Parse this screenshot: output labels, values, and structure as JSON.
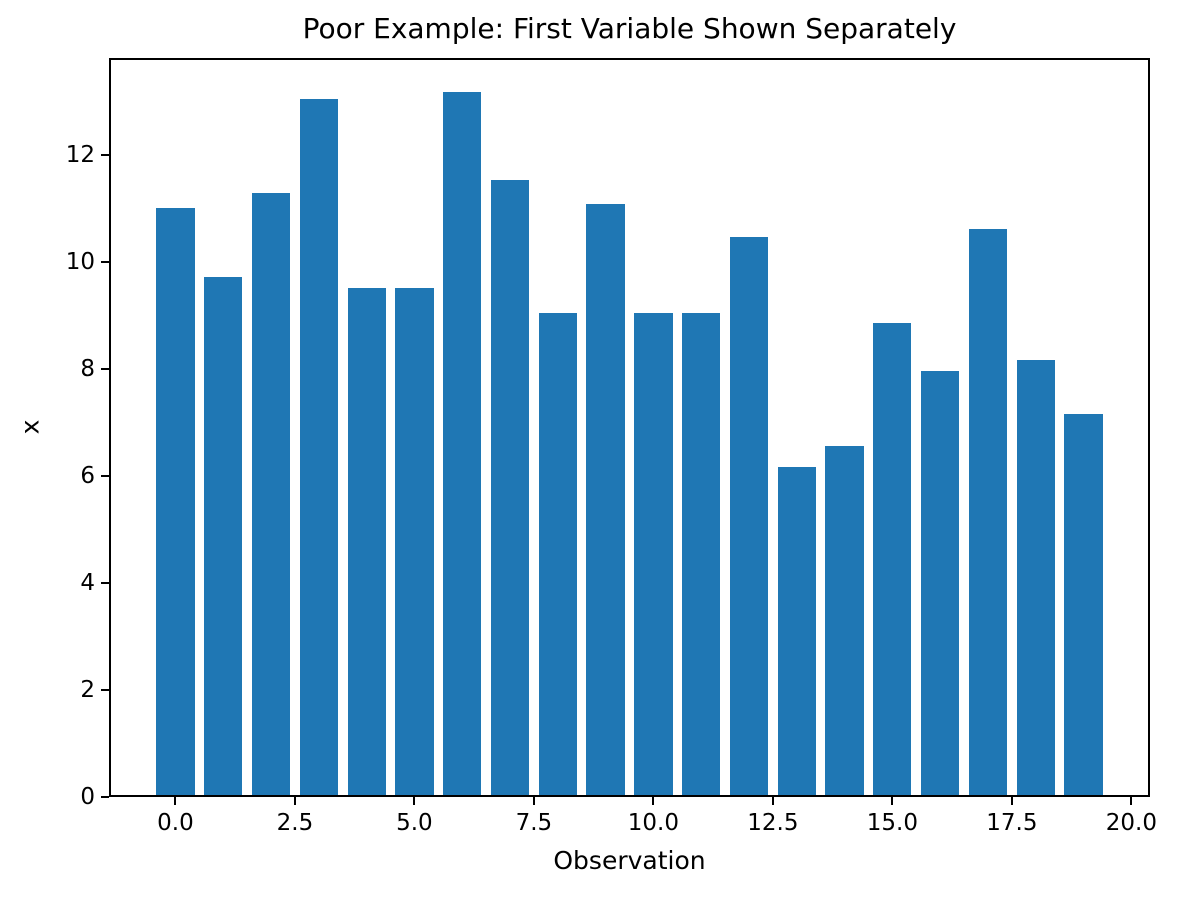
{
  "figure": {
    "background": "#ffffff",
    "text_color": "#000000"
  },
  "chart_data": {
    "type": "bar",
    "title": "Poor Example: First Variable Shown Separately",
    "xlabel": "Observation",
    "ylabel": "x",
    "categories": [
      0,
      1,
      2,
      3,
      4,
      5,
      6,
      7,
      8,
      9,
      10,
      11,
      12,
      13,
      14,
      15,
      16,
      17,
      18,
      19
    ],
    "values": [
      11.0,
      9.72,
      11.29,
      13.04,
      9.51,
      9.51,
      13.17,
      11.53,
      9.04,
      11.08,
      9.05,
      9.05,
      10.47,
      6.17,
      6.55,
      8.86,
      7.96,
      10.61,
      8.16,
      7.16
    ],
    "bar_color": "#1f77b4",
    "bar_width": 0.8,
    "xlim": [
      -1.39,
      20.39
    ],
    "ylim": [
      0,
      13.81
    ],
    "xtick_values": [
      0,
      2.5,
      5,
      7.5,
      10,
      12.5,
      15,
      17.5,
      20
    ],
    "xtick_labels": [
      "0.0",
      "2.5",
      "5.0",
      "7.5",
      "10.0",
      "12.5",
      "15.0",
      "17.5",
      "20.0"
    ],
    "ytick_values": [
      0,
      2,
      4,
      6,
      8,
      10,
      12
    ],
    "ytick_labels": [
      "0",
      "2",
      "4",
      "6",
      "8",
      "10",
      "12"
    ],
    "grid": false,
    "legend": "none",
    "axis_color": "#000000"
  }
}
